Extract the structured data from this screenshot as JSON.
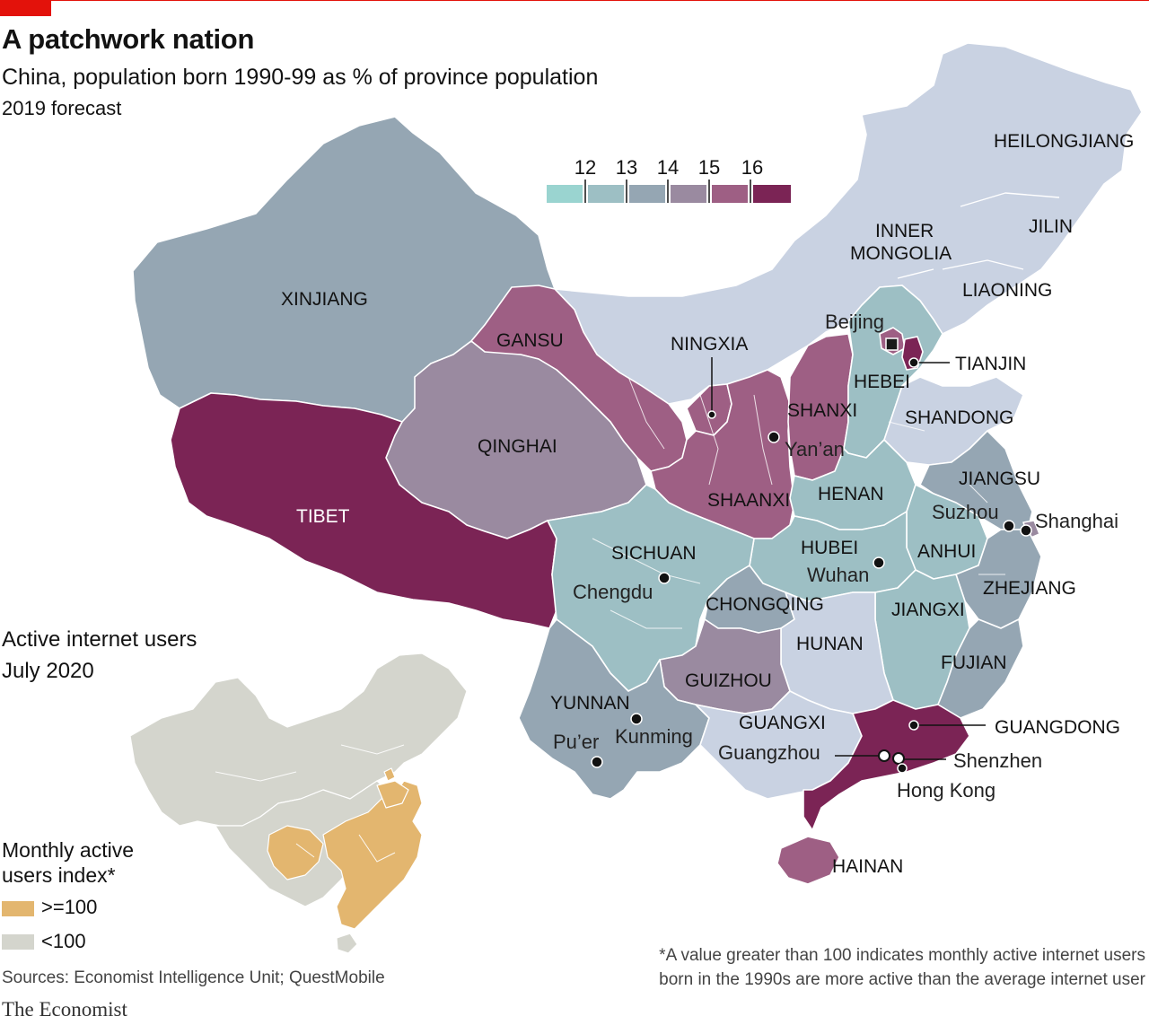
{
  "header": {
    "title": "A patchwork nation",
    "subtitle": "China, population born 1990-99 as % of province population",
    "note": "2019 forecast"
  },
  "scale": {
    "ticks": [
      "12",
      "13",
      "14",
      "15",
      "16"
    ],
    "colors": [
      "#9ad4d0",
      "#9dbfc4",
      "#95a6b3",
      "#9a8aa0",
      "#9e5f84",
      "#7b2455"
    ]
  },
  "colors": {
    "red": "#e3120b",
    "light_blue": "#c9d2e2",
    "teal": "#9dbfc4",
    "slate": "#95a6b3",
    "mauve": "#9a8aa0",
    "plum": "#9e5f84",
    "burgundy": "#7b2455",
    "inset_high": "#e3b66f",
    "inset_low": "#d4d5cd"
  },
  "provinces": {
    "heilongjiang": "HEILONGJIANG",
    "jilin": "JILIN",
    "liaoning": "LIAONING",
    "inner_mongolia_1": "INNER",
    "inner_mongolia_2": "MONGOLIA",
    "xinjiang": "XINJIANG",
    "gansu": "GANSU",
    "ningxia": "NINGXIA",
    "tianjin": "TIANJIN",
    "hebei": "HEBEI",
    "shanxi": "SHANXI",
    "shandong": "SHANDONG",
    "qinghai": "QINGHAI",
    "tibet": "TIBET",
    "shaanxi": "SHAANXI",
    "henan": "HENAN",
    "jiangsu": "JIANGSU",
    "sichuan": "SICHUAN",
    "hubei": "HUBEI",
    "anhui": "ANHUI",
    "zhejiang": "ZHEJIANG",
    "chongqing": "CHONGQING",
    "jiangxi": "JIANGXI",
    "hunan": "HUNAN",
    "fujian": "FUJIAN",
    "guizhou": "GUIZHOU",
    "yunnan": "YUNNAN",
    "guangxi": "GUANGXI",
    "guangdong": "GUANGDONG",
    "hainan": "HAINAN"
  },
  "cities": {
    "beijing": "Beijing",
    "yanan": "Yan’an",
    "suzhou": "Suzhou",
    "shanghai": "Shanghai",
    "wuhan": "Wuhan",
    "chengdu": "Chengdu",
    "kunming": "Kunming",
    "puer": "Pu’er",
    "guangzhou": "Guangzhou",
    "shenzhen": "Shenzhen",
    "hong_kong": "Hong Kong"
  },
  "inset": {
    "title_line1": "Active internet users",
    "title_line2": "July 2020",
    "index_line1": "Monthly active",
    "index_line2": "users index*",
    "key_high": ">=100",
    "key_low": "<100"
  },
  "footer": {
    "sources": "Sources: Economist Intelligence Unit; QuestMobile",
    "brand": "The Economist",
    "footnote_line1": "*A value greater than 100 indicates monthly active internet users",
    "footnote_line2": "born in the 1990s are more active than the average internet user"
  }
}
